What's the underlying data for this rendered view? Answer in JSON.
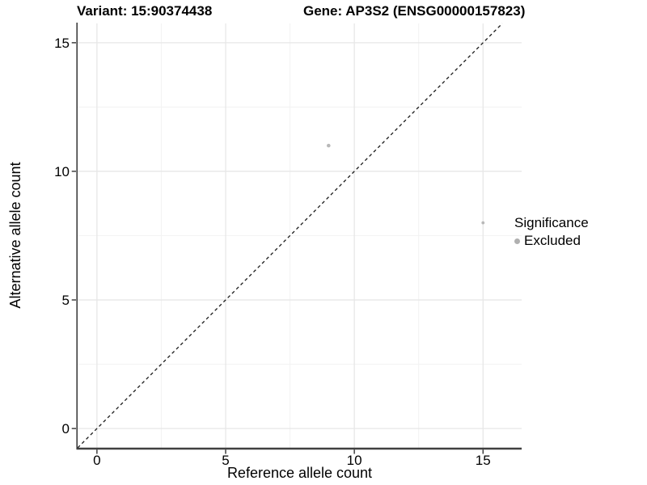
{
  "header": {
    "variant_title": "Variant: 15:90374438",
    "gene_title": "Gene: AP3S2 (ENSG00000157823)"
  },
  "chart_data": {
    "type": "scatter",
    "title": "",
    "xlabel": "Reference allele count",
    "ylabel": "Alternative allele count",
    "xlim": [
      -0.75,
      16.5
    ],
    "ylim": [
      -0.75,
      15.75
    ],
    "x_ticks": [
      0,
      5,
      10,
      15
    ],
    "y_ticks": [
      0,
      5,
      10,
      15
    ],
    "x_minor_ticks": [
      2.5,
      7.5,
      12.5
    ],
    "y_minor_ticks": [
      2.5,
      7.5,
      12.5
    ],
    "grid": "on",
    "legend_position": "right",
    "points": [
      {
        "x": 9,
        "y": 11,
        "r": 2.3,
        "significance": "Excluded"
      },
      {
        "x": 15,
        "y": 8,
        "r": 1.9,
        "significance": "Excluded"
      }
    ],
    "reference_line": {
      "description": "identity line y = x",
      "style": "dashed",
      "from": [
        -0.75,
        -0.75
      ],
      "to": [
        15.75,
        15.75
      ]
    },
    "legend": {
      "title": "Significance",
      "items": [
        {
          "label": "Excluded",
          "color": "#b0b0b0"
        }
      ]
    }
  },
  "colors": {
    "background": "#ffffff",
    "point": "#b8b8b8",
    "grid_major": "#e7e7e7",
    "grid_minor": "#f3f3f3",
    "axis_line": "#404040",
    "tick_mark": "#333333",
    "dashed_line": "#1a1a1a",
    "text": "#000000"
  }
}
